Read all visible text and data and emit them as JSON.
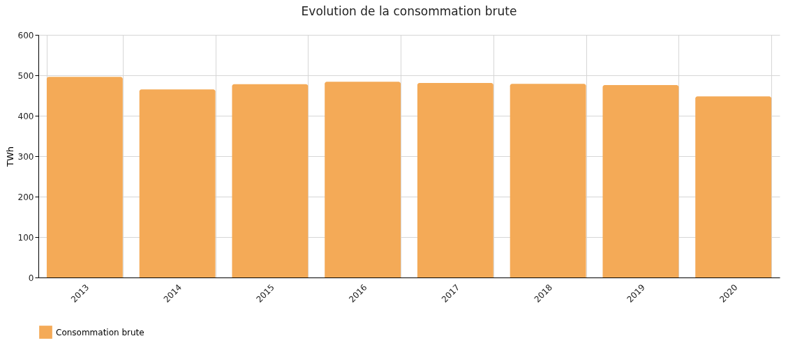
{
  "chart_data": {
    "type": "bar",
    "title": "Evolution de la consommation brute",
    "ylabel": "TWh",
    "categories": [
      "2013",
      "2014",
      "2015",
      "2016",
      "2017",
      "2018",
      "2019",
      "2020"
    ],
    "series": [
      {
        "name": "Consommation brute",
        "color": "#f4aa57",
        "values": [
          496,
          465,
          478,
          484,
          481,
          479,
          476,
          448
        ]
      }
    ],
    "ylim": [
      0,
      600
    ],
    "yticks": [
      0,
      100,
      200,
      300,
      400,
      500,
      600
    ],
    "grid": true,
    "legend": "bottom"
  }
}
